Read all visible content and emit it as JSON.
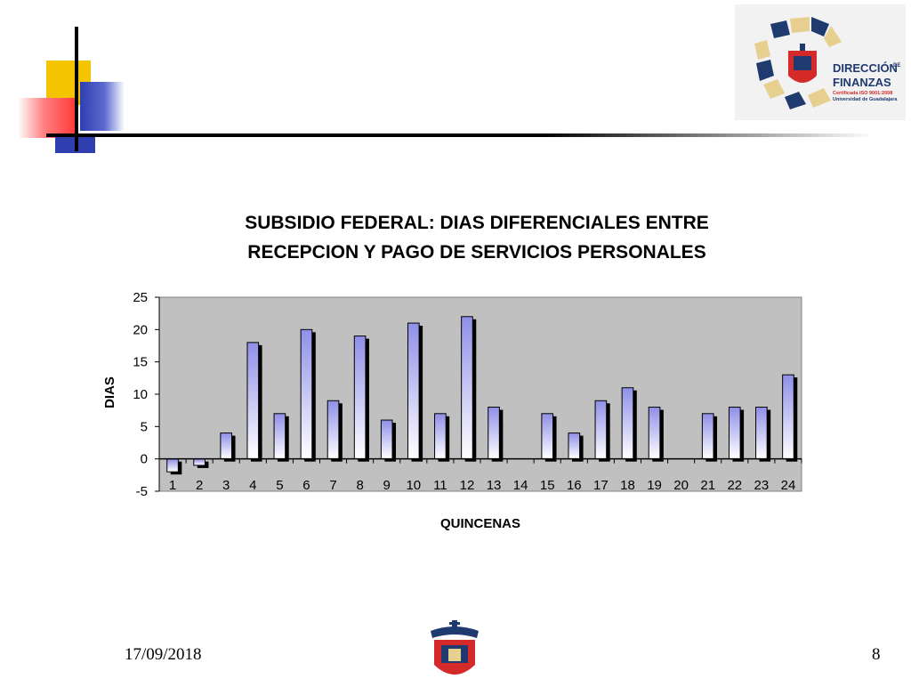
{
  "slide": {
    "date": "17/09/2018",
    "page_number": "8"
  },
  "logo": {
    "line1": "DIRECCIÓN",
    "line1_small": "DE",
    "line2": "FINANZAS",
    "line3": "Certificada ISO 9001:2008",
    "line4": "Universidad de Guadalajara"
  },
  "colors": {
    "yellow": "#f5c400",
    "red": "#ff3a3a",
    "blue": "#2f3fb0",
    "logo_blue": "#1f3a6e",
    "logo_gold": "#e6cf8f",
    "logo_red": "#d42a2a",
    "plot_bg": "#c0c0c0",
    "bar_top": "#8f8fe8",
    "bar_bottom": "#ffffff"
  },
  "chart_data": {
    "type": "bar",
    "title_lines": [
      "SUBSIDIO FEDERAL: DIAS DIFERENCIALES ENTRE",
      "RECEPCION Y PAGO DE SERVICIOS PERSONALES"
    ],
    "xlabel": "QUINCENAS",
    "ylabel": "DIAS",
    "categories": [
      "1",
      "2",
      "3",
      "4",
      "5",
      "6",
      "7",
      "8",
      "9",
      "10",
      "11",
      "12",
      "13",
      "14",
      "15",
      "16",
      "17",
      "18",
      "19",
      "20",
      "21",
      "22",
      "23",
      "24"
    ],
    "values": [
      -2,
      -1,
      4,
      18,
      7,
      20,
      9,
      19,
      6,
      21,
      7,
      22,
      8,
      0,
      7,
      4,
      9,
      11,
      8,
      0,
      7,
      8,
      8,
      13
    ],
    "ylim": [
      -5,
      25
    ],
    "yticks": [
      -5,
      0,
      5,
      10,
      15,
      20,
      25
    ],
    "grid": false,
    "legend": "none"
  }
}
